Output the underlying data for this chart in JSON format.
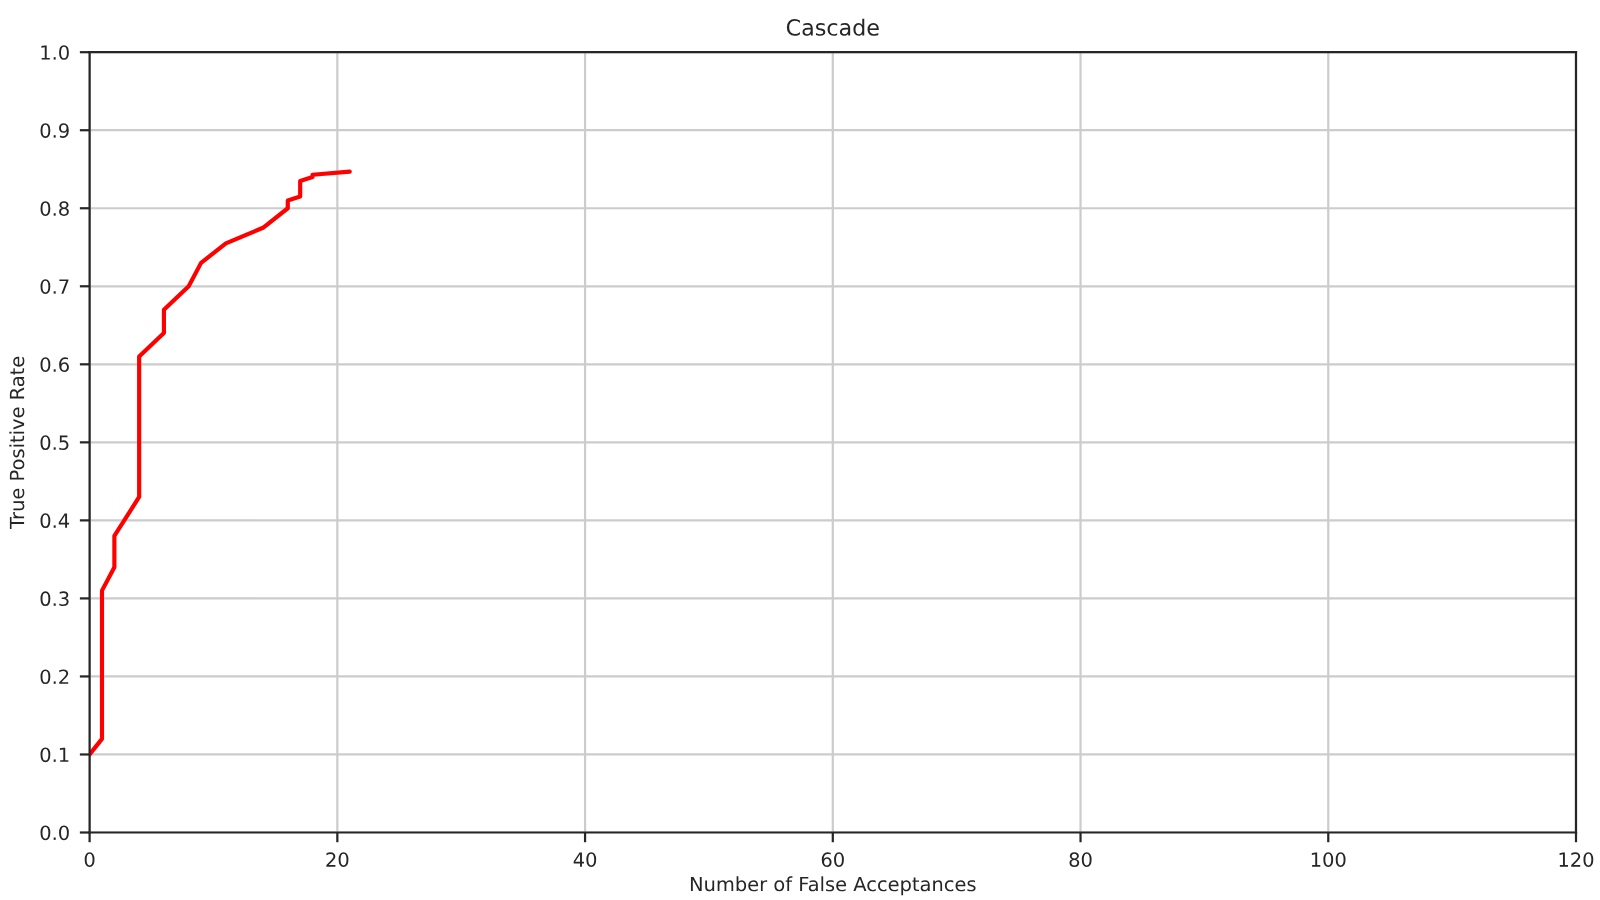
{
  "chart_data": {
    "type": "line",
    "title": "Cascade",
    "xlabel": "Number of False Acceptances",
    "ylabel": "True Positive Rate",
    "series": [
      {
        "color": "#ff0000",
        "x": [
          0,
          1,
          1,
          2,
          2,
          4,
          4,
          6,
          6,
          8,
          9,
          11,
          14,
          16,
          16,
          17,
          17,
          18,
          18,
          21
        ],
        "values": [
          0.1,
          0.12,
          0.31,
          0.34,
          0.38,
          0.43,
          0.61,
          0.64,
          0.67,
          0.7,
          0.73,
          0.755,
          0.775,
          0.8,
          0.81,
          0.815,
          0.835,
          0.84,
          0.843,
          0.847
        ]
      }
    ],
    "xlim": [
      0,
      120
    ],
    "xticks": [
      0,
      20,
      40,
      60,
      80,
      100,
      120
    ],
    "ylim": [
      0,
      1.0
    ],
    "yticks": [
      {
        "value": 0,
        "label": "0.0"
      },
      0.1,
      0.2,
      0.3,
      0.4,
      0.5,
      0.6,
      0.7,
      0.8,
      0.9,
      {
        "value": 1.0,
        "label": "1.0"
      }
    ],
    "grid": true,
    "legend": false
  }
}
